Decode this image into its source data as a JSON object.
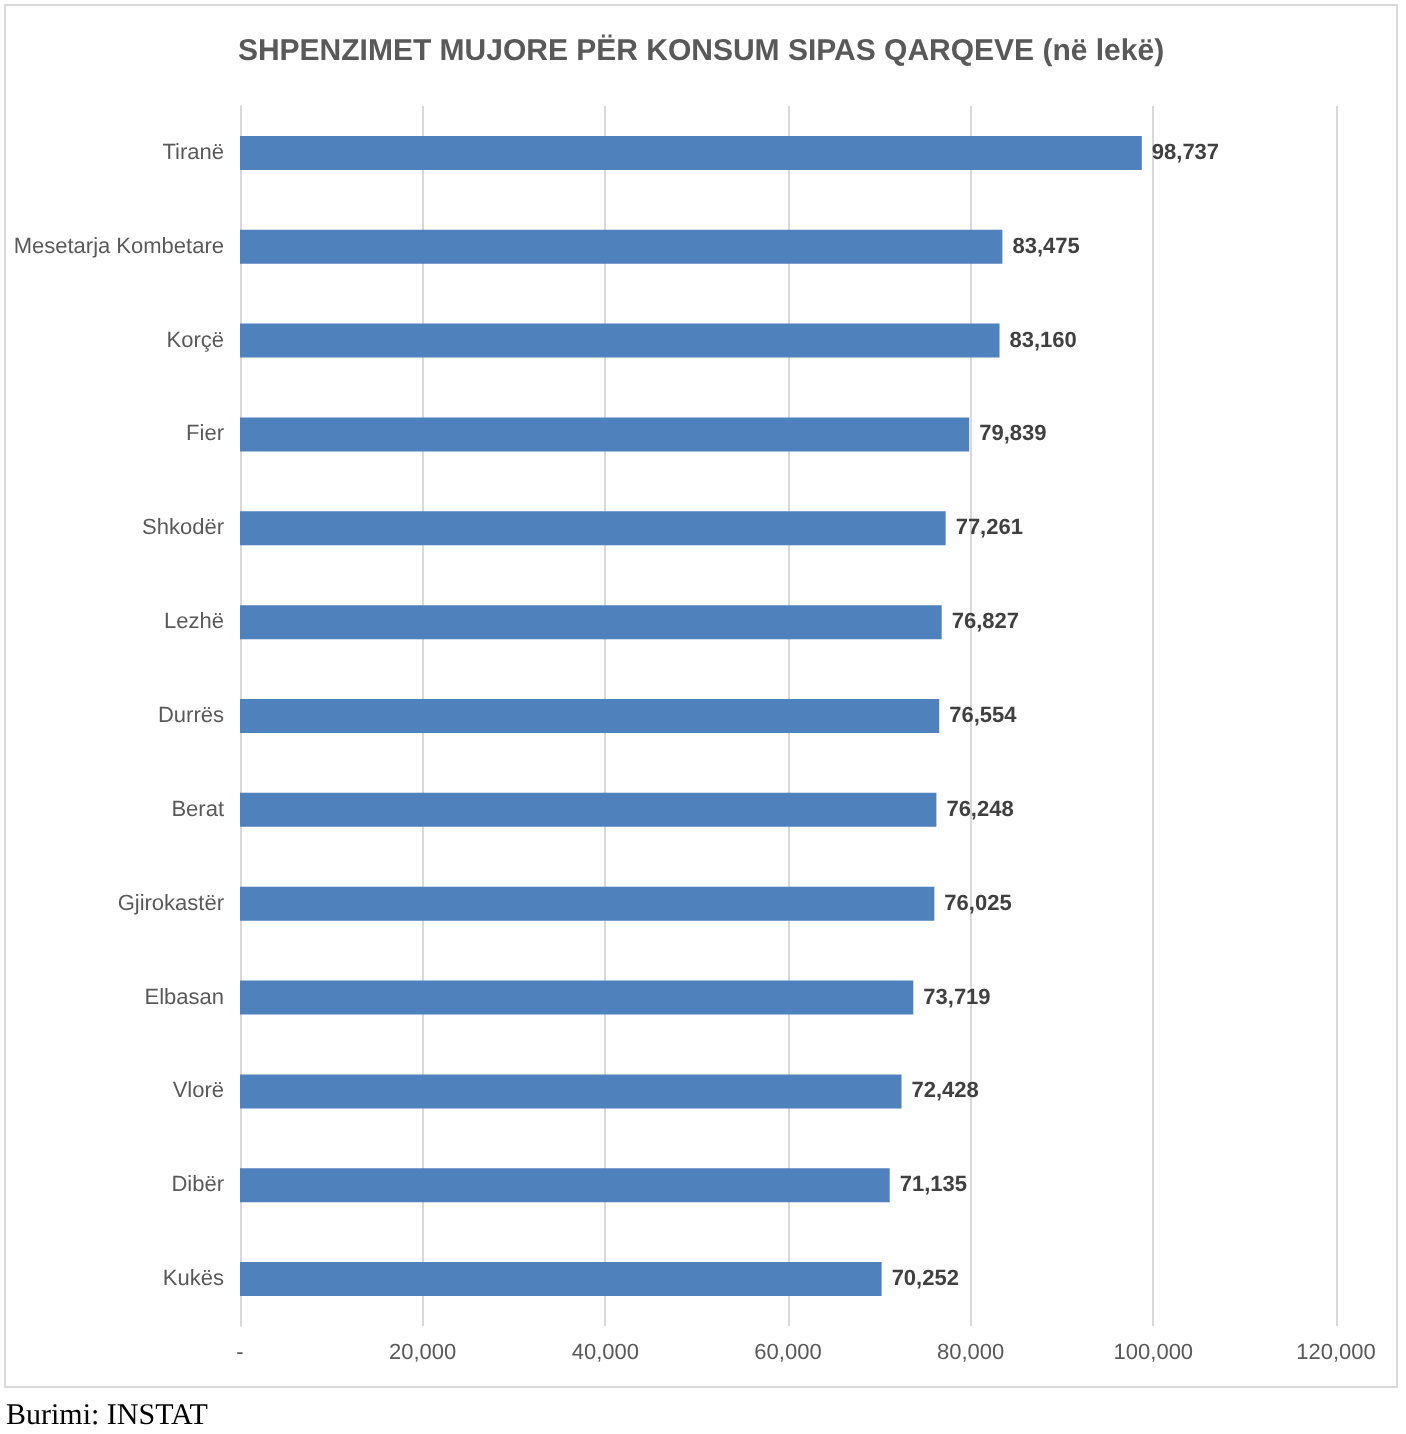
{
  "chart_data": {
    "type": "bar",
    "orientation": "horizontal",
    "title": "SHPENZIMET MUJORE PËR KONSUM SIPAS QARQEVE (në lekë)",
    "categories": [
      "Tiranë",
      "Mesetarja Kombetare",
      "Korçë",
      "Fier",
      "Shkodër",
      "Lezhë",
      "Durrës",
      "Berat",
      "Gjirokastër",
      "Elbasan",
      "Vlorë",
      "Dibër",
      "Kukës"
    ],
    "values": [
      98737,
      83475,
      83160,
      79839,
      77261,
      76827,
      76554,
      76248,
      76025,
      73719,
      72428,
      71135,
      70252
    ],
    "value_labels": [
      "98,737",
      "83,475",
      "83,160",
      "79,839",
      "77,261",
      "76,827",
      "76,554",
      "76,248",
      "76,025",
      "73,719",
      "72,428",
      "71,135",
      "70,252"
    ],
    "color": "#4f81bd",
    "xlim": [
      0,
      120000
    ],
    "xticks": [
      {
        "value": 0,
        "label": "-"
      },
      {
        "value": 20000,
        "label": "20,000"
      },
      {
        "value": 40000,
        "label": "40,000"
      },
      {
        "value": 60000,
        "label": "60,000"
      },
      {
        "value": 80000,
        "label": "80,000"
      },
      {
        "value": 100000,
        "label": "100,000"
      },
      {
        "value": 120000,
        "label": "120,000"
      }
    ],
    "grid": "x",
    "annotations": [
      "Burimi: INSTAT"
    ]
  }
}
